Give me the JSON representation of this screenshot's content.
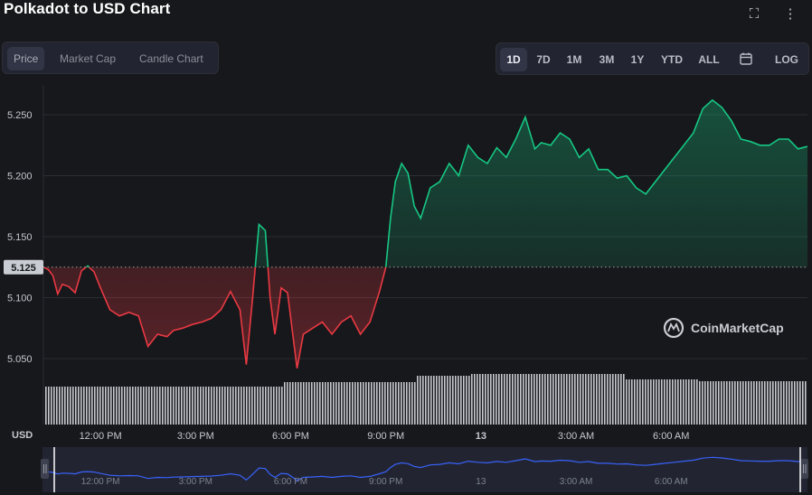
{
  "header": {
    "title": "Polkadot to USD Chart",
    "fullscreen_icon": "fullscreen-icon",
    "more_icon": "more-icon"
  },
  "view_tabs": [
    {
      "label": "Price",
      "active": true
    },
    {
      "label": "Market Cap",
      "active": false
    },
    {
      "label": "Candle Chart",
      "active": false
    }
  ],
  "ranges": [
    {
      "label": "1D",
      "active": true
    },
    {
      "label": "7D",
      "active": false
    },
    {
      "label": "1M",
      "active": false
    },
    {
      "label": "3M",
      "active": false
    },
    {
      "label": "1Y",
      "active": false
    },
    {
      "label": "YTD",
      "active": false
    },
    {
      "label": "ALL",
      "active": false
    },
    {
      "label": "LOG",
      "active": false
    }
  ],
  "calendar_icon": "calendar-icon",
  "watermark": "CoinMarketCap",
  "colors": {
    "up": "#16c784",
    "down": "#ea3943",
    "background": "#17181b",
    "navigator_line": "#3861fb"
  },
  "chart_data": {
    "type": "line",
    "xlabel": "",
    "ylabel": "USD",
    "baseline": {
      "value": 5.125,
      "label": "5.125"
    },
    "yticks": [
      5.25,
      5.2,
      5.15,
      5.1,
      5.05
    ],
    "ytick_labels": [
      "5.250",
      "5.200",
      "5.150",
      "5.100",
      "5.050"
    ],
    "ylim": [
      5.0,
      5.275
    ],
    "xlim_hours": [
      10.2,
      34.3
    ],
    "xticks": [
      {
        "h": 12,
        "label": "12:00 PM"
      },
      {
        "h": 15,
        "label": "3:00 PM"
      },
      {
        "h": 18,
        "label": "6:00 PM"
      },
      {
        "h": 21,
        "label": "9:00 PM"
      },
      {
        "h": 24,
        "label": "13"
      },
      {
        "h": 27,
        "label": "3:00 AM"
      },
      {
        "h": 30,
        "label": "6:00 AM"
      }
    ],
    "x": [
      10.2,
      10.35,
      10.5,
      10.65,
      10.8,
      11.0,
      11.2,
      11.4,
      11.6,
      11.8,
      12.0,
      12.3,
      12.6,
      12.9,
      13.2,
      13.5,
      13.8,
      14.1,
      14.3,
      14.6,
      14.9,
      15.2,
      15.5,
      15.8,
      16.1,
      16.4,
      16.6,
      16.8,
      17.0,
      17.2,
      17.35,
      17.5,
      17.7,
      17.9,
      18.2,
      18.4,
      18.7,
      19.0,
      19.3,
      19.6,
      19.9,
      20.2,
      20.5,
      20.8,
      21.0,
      21.15,
      21.3,
      21.5,
      21.7,
      21.9,
      22.1,
      22.4,
      22.7,
      23.0,
      23.3,
      23.6,
      23.9,
      24.2,
      24.5,
      24.8,
      25.1,
      25.4,
      25.7,
      25.9,
      26.2,
      26.5,
      26.8,
      27.1,
      27.4,
      27.7,
      28.0,
      28.3,
      28.6,
      28.9,
      29.2,
      29.5,
      29.8,
      30.1,
      30.4,
      30.7,
      31.0,
      31.3,
      31.6,
      31.9,
      32.2,
      32.5,
      32.8,
      33.1,
      33.4,
      33.7,
      34.0,
      34.3
    ],
    "y": [
      5.125,
      5.123,
      5.118,
      5.103,
      5.111,
      5.109,
      5.104,
      5.122,
      5.126,
      5.121,
      5.108,
      5.09,
      5.085,
      5.088,
      5.085,
      5.06,
      5.07,
      5.068,
      5.073,
      5.075,
      5.078,
      5.08,
      5.083,
      5.09,
      5.105,
      5.09,
      5.045,
      5.1,
      5.16,
      5.155,
      5.1,
      5.07,
      5.108,
      5.104,
      5.042,
      5.07,
      5.075,
      5.08,
      5.07,
      5.08,
      5.085,
      5.07,
      5.08,
      5.105,
      5.125,
      5.165,
      5.195,
      5.21,
      5.202,
      5.175,
      5.165,
      5.19,
      5.195,
      5.21,
      5.2,
      5.225,
      5.215,
      5.21,
      5.223,
      5.215,
      5.23,
      5.248,
      5.222,
      5.227,
      5.225,
      5.235,
      5.23,
      5.215,
      5.222,
      5.205,
      5.205,
      5.198,
      5.2,
      5.19,
      5.185,
      5.195,
      5.205,
      5.215,
      5.225,
      5.235,
      5.255,
      5.262,
      5.256,
      5.245,
      5.23,
      5.228,
      5.225,
      5.225,
      5.23,
      5.23,
      5.222,
      5.224
    ],
    "volume_note": "volume bars along bottom"
  }
}
